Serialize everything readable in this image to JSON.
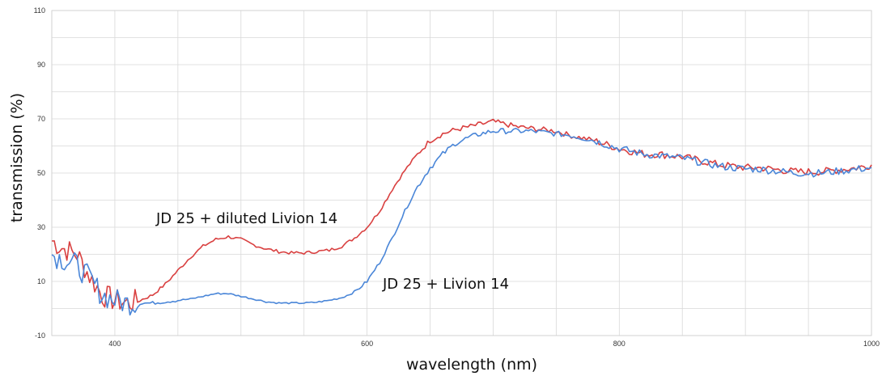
{
  "chart_data": {
    "type": "line",
    "title": "",
    "xlabel": "wavelength (nm)",
    "ylabel": "transmission (%)",
    "xlim": [
      350,
      1000
    ],
    "ylim": [
      -10,
      110
    ],
    "x_ticks": [
      400,
      600,
      800,
      1000
    ],
    "y_ticks": [
      -10,
      10,
      30,
      50,
      70,
      90,
      110
    ],
    "x_tick_labels": [
      "400",
      "600",
      "800",
      "1000"
    ],
    "y_tick_labels": [
      "-10",
      "10",
      "30",
      "50",
      "70",
      "90",
      "110"
    ],
    "grid": true,
    "legend": "none",
    "colors": {
      "series_a": "#d94040",
      "series_b": "#4a86d8",
      "grid": "#d9d9d9"
    },
    "annotations": [
      {
        "text": "JD 25 + diluted Livion 14",
        "series": 0
      },
      {
        "text": "JD 25 + Livion 14",
        "series": 1
      }
    ],
    "series": [
      {
        "color": "#d94040",
        "x": [
          350,
          360,
          370,
          380,
          390,
          400,
          410,
          420,
          430,
          440,
          450,
          460,
          470,
          480,
          490,
          500,
          510,
          520,
          530,
          540,
          550,
          560,
          570,
          580,
          590,
          600,
          610,
          620,
          630,
          640,
          650,
          660,
          670,
          680,
          690,
          700,
          710,
          720,
          730,
          740,
          750,
          760,
          770,
          780,
          790,
          800,
          810,
          820,
          830,
          840,
          850,
          860,
          870,
          880,
          890,
          900,
          910,
          920,
          930,
          940,
          950,
          960,
          970,
          980,
          990,
          1000
        ],
        "y": [
          25,
          22,
          20,
          12,
          5,
          3,
          2,
          3,
          5,
          9,
          14,
          19,
          23,
          25.5,
          26.5,
          25.5,
          23.5,
          22,
          21,
          20.5,
          20.5,
          21,
          21.5,
          23,
          26,
          30,
          36,
          44,
          51,
          57,
          62,
          64.5,
          66,
          67,
          68,
          69,
          68,
          67,
          66.5,
          66,
          65.5,
          64,
          63,
          62,
          60.5,
          59,
          58,
          57,
          57,
          56.5,
          56,
          55,
          54,
          53,
          52.5,
          52,
          52,
          51.5,
          51,
          50.5,
          50.5,
          50.5,
          51,
          51.5,
          52,
          53
        ]
      },
      {
        "color": "#4a86d8",
        "x": [
          350,
          360,
          370,
          380,
          390,
          400,
          410,
          420,
          430,
          440,
          450,
          460,
          470,
          480,
          490,
          500,
          510,
          520,
          530,
          540,
          550,
          560,
          570,
          580,
          590,
          600,
          610,
          620,
          630,
          640,
          650,
          660,
          670,
          680,
          690,
          700,
          710,
          720,
          730,
          740,
          750,
          760,
          770,
          780,
          790,
          800,
          810,
          820,
          830,
          840,
          850,
          860,
          870,
          880,
          890,
          900,
          910,
          920,
          930,
          940,
          950,
          960,
          970,
          980,
          990,
          1000
        ],
        "y": [
          20,
          18,
          16,
          11,
          5,
          3,
          2,
          2,
          2,
          2.5,
          3,
          3.5,
          4.5,
          5.5,
          5.5,
          4.5,
          3.5,
          2.5,
          2,
          2,
          2,
          2.3,
          3,
          4,
          6,
          10,
          17,
          26,
          36,
          45,
          52,
          57,
          61,
          63,
          64.5,
          65.5,
          65.5,
          65.5,
          65.5,
          65,
          64.5,
          64,
          63,
          62,
          60.5,
          59,
          58,
          57,
          56.5,
          56,
          55.5,
          54.5,
          53.5,
          52.5,
          52,
          51.5,
          51.5,
          51,
          50.5,
          50,
          50,
          50,
          50.5,
          51,
          51.5,
          52
        ]
      }
    ]
  }
}
